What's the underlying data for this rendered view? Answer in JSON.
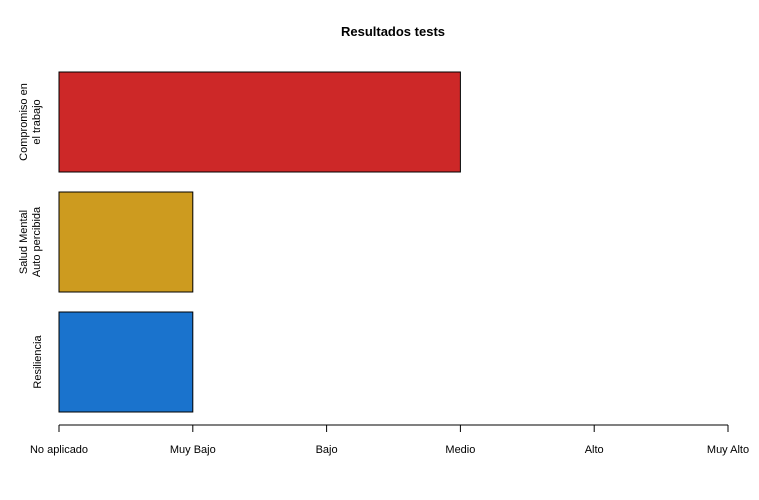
{
  "chart_data": {
    "type": "bar",
    "orientation": "horizontal",
    "title": "Resultados tests",
    "xlabel": "",
    "ylabel": "",
    "x_ticks": [
      "No aplicado",
      "Muy Bajo",
      "Bajo",
      "Medio",
      "Alto",
      "Muy Alto"
    ],
    "xlim": [
      0,
      5
    ],
    "categories": [
      [
        "Compromiso en",
        "el trabajo"
      ],
      [
        "Salud Mental",
        "Auto percibida"
      ],
      [
        "Resiliencia"
      ]
    ],
    "values": [
      3,
      1,
      1
    ],
    "colors": [
      "#cd2828",
      "#cd9b1f",
      "#1a73cd"
    ],
    "grid": false,
    "legend": "none"
  }
}
